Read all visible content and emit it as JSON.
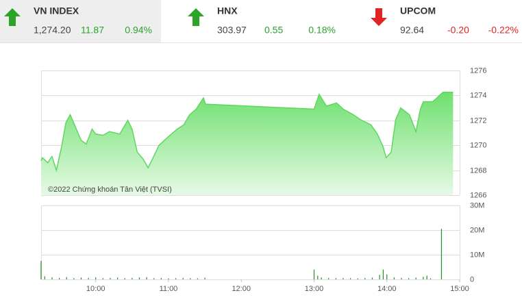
{
  "header": {
    "items": [
      {
        "name": "VN INDEX",
        "value": "1,274.20",
        "change": "11.87",
        "percent": "0.94%",
        "trend": "up",
        "color": "#2aa52a"
      },
      {
        "name": "HNX",
        "value": "303.97",
        "change": "0.55",
        "percent": "0.18%",
        "trend": "up",
        "color": "#2aa52a"
      },
      {
        "name": "UPCOM",
        "value": "92.64",
        "change": "-0.20",
        "percent": "-0.22%",
        "trend": "down",
        "color": "#e02424"
      }
    ]
  },
  "chart_data": [
    {
      "type": "area",
      "annotation": "©2022 Chứng khoán Tân Việt (TVSI)",
      "color": "#5fd65f",
      "x": [
        9.25,
        9.27,
        9.34,
        9.4,
        9.46,
        9.53,
        9.59,
        9.65,
        9.72,
        9.8,
        9.87,
        9.95,
        10.0,
        10.1,
        10.19,
        10.33,
        10.44,
        10.5,
        10.57,
        10.65,
        10.72,
        10.78,
        10.87,
        10.99,
        11.12,
        11.21,
        11.29,
        11.38,
        11.48,
        11.51,
        13.0,
        13.07,
        13.17,
        13.31,
        13.4,
        13.54,
        13.64,
        13.78,
        13.87,
        13.95,
        13.99,
        14.06,
        14.12,
        14.19,
        14.31,
        14.4,
        14.46,
        14.5,
        14.63,
        14.77,
        14.91
      ],
      "values": [
        1268.75,
        1269.0,
        1268.6,
        1269.1,
        1268.0,
        1269.85,
        1271.8,
        1272.45,
        1271.5,
        1270.4,
        1270.1,
        1271.3,
        1270.9,
        1270.8,
        1271.1,
        1270.9,
        1272.0,
        1271.3,
        1269.45,
        1268.9,
        1268.2,
        1268.9,
        1270.0,
        1270.65,
        1271.3,
        1271.65,
        1272.45,
        1272.9,
        1273.8,
        1273.3,
        1272.9,
        1274.1,
        1273.15,
        1273.4,
        1272.9,
        1272.45,
        1272.05,
        1271.65,
        1270.9,
        1269.85,
        1269.0,
        1269.45,
        1272.05,
        1273.0,
        1272.45,
        1271.1,
        1272.9,
        1273.5,
        1273.5,
        1274.25,
        1274.25
      ],
      "xlim": [
        9.25,
        15
      ],
      "ylim": [
        1266,
        1276
      ],
      "yticks": [
        1266,
        1268,
        1270,
        1272,
        1274,
        1276
      ],
      "grid": true
    },
    {
      "type": "bar",
      "color": "#1f8f1f",
      "x": [
        9.25,
        9.3,
        9.4,
        9.5,
        9.6,
        9.7,
        9.8,
        9.9,
        10.0,
        10.1,
        10.2,
        10.3,
        10.4,
        10.5,
        10.6,
        10.7,
        10.8,
        10.9,
        11.0,
        11.1,
        11.2,
        11.3,
        11.4,
        11.5,
        13.0,
        13.05,
        13.1,
        13.2,
        13.3,
        13.4,
        13.5,
        13.6,
        13.7,
        13.8,
        13.9,
        13.95,
        14.0,
        14.1,
        14.2,
        14.3,
        14.4,
        14.5,
        14.55,
        14.6,
        14.75
      ],
      "values": [
        7.5,
        1.2,
        0.8,
        0.6,
        0.9,
        0.5,
        0.7,
        0.6,
        0.8,
        0.5,
        0.6,
        0.7,
        0.5,
        0.6,
        0.8,
        0.9,
        0.5,
        0.6,
        0.4,
        0.5,
        0.6,
        0.5,
        0.4,
        0.7,
        4.0,
        1.5,
        0.8,
        0.6,
        0.5,
        0.6,
        0.5,
        0.4,
        0.6,
        0.7,
        1.8,
        4.0,
        2.0,
        0.8,
        0.6,
        0.5,
        0.7,
        1.0,
        1.5,
        0.4,
        20.5
      ],
      "xlim": [
        9.25,
        15
      ],
      "ylim": [
        0,
        30
      ],
      "yticks": [
        0,
        {
          "value": 10,
          "label": "10M"
        },
        {
          "value": 20,
          "label": "20M"
        },
        {
          "value": 30,
          "label": "30M"
        }
      ],
      "xticks": [
        {
          "value": 10,
          "label": "10:00"
        },
        {
          "value": 11,
          "label": "11:00"
        },
        {
          "value": 12,
          "label": "12:00"
        },
        {
          "value": 13,
          "label": "13:00"
        },
        {
          "value": 14,
          "label": "14:00"
        },
        {
          "value": 15,
          "label": "15:00"
        }
      ],
      "grid": true
    }
  ]
}
